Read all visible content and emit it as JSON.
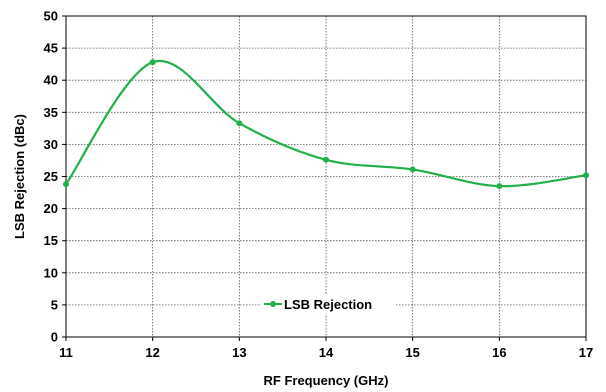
{
  "chart_data": {
    "type": "line",
    "title": "",
    "xlabel": "RF Frequency (GHz)",
    "ylabel": "LSB Rejection (dBc)",
    "xlim": [
      11,
      17
    ],
    "ylim": [
      0,
      50
    ],
    "xticks": [
      11,
      12,
      13,
      14,
      15,
      16,
      17
    ],
    "yticks": [
      0,
      5,
      10,
      15,
      20,
      25,
      30,
      35,
      40,
      45,
      50
    ],
    "grid": true,
    "legend_position": "bottom-center",
    "series": [
      {
        "name": "LSB Rejection",
        "color": "#22b04a",
        "marker": "circle",
        "smooth": true,
        "x": [
          11,
          12,
          13,
          14,
          15,
          16,
          17
        ],
        "y": [
          23.8,
          42.8,
          33.3,
          27.6,
          26.1,
          23.5,
          25.2
        ]
      }
    ]
  }
}
